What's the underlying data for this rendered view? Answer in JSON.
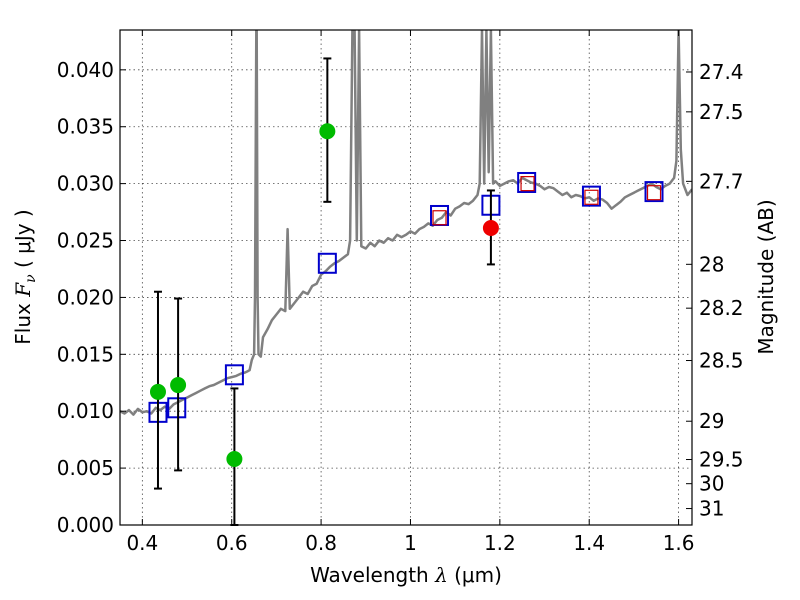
{
  "chart_data": {
    "type": "line",
    "xlabel": "Wavelength  λ (μm)",
    "ylabel": "Flux  F_ν  ( μJy )",
    "ylabel_parts": {
      "pre": "Flux ",
      "sym": "F",
      "sub": "ν",
      "post": "  ( μJy )"
    },
    "xlabel_parts": {
      "pre": "Wavelength  ",
      "sym": "λ",
      "post": " (μm)"
    },
    "y2label": "Magnitude (AB)",
    "xlim": [
      0.35,
      1.63
    ],
    "ylim": [
      0.0,
      0.0435
    ],
    "grid": true,
    "x_ticks": [
      {
        "value": 0.4,
        "label": "0.4"
      },
      {
        "value": 0.6,
        "label": "0.6"
      },
      {
        "value": 0.8,
        "label": "0.8"
      },
      {
        "value": 1.0,
        "label": "1"
      },
      {
        "value": 1.2,
        "label": "1.2"
      },
      {
        "value": 1.4,
        "label": "1.4"
      },
      {
        "value": 1.6,
        "label": "1.6"
      }
    ],
    "y_ticks": [
      {
        "value": 0.0,
        "label": "0.000"
      },
      {
        "value": 0.005,
        "label": "0.005"
      },
      {
        "value": 0.01,
        "label": "0.010"
      },
      {
        "value": 0.015,
        "label": "0.015"
      },
      {
        "value": 0.02,
        "label": "0.020"
      },
      {
        "value": 0.025,
        "label": "0.025"
      },
      {
        "value": 0.03,
        "label": "0.030"
      },
      {
        "value": 0.035,
        "label": "0.035"
      },
      {
        "value": 0.04,
        "label": "0.040"
      }
    ],
    "mag_ticks": [
      {
        "mag": 27.4,
        "label": "27.4"
      },
      {
        "mag": 27.5,
        "label": "27.5"
      },
      {
        "mag": 27.7,
        "label": "27.7"
      },
      {
        "mag": 28.0,
        "label": "28"
      },
      {
        "mag": 28.2,
        "label": "28.2"
      },
      {
        "mag": 28.5,
        "label": "28.5"
      },
      {
        "mag": 29.0,
        "label": "29"
      },
      {
        "mag": 29.5,
        "label": "29.5"
      },
      {
        "mag": 30.0,
        "label": "30"
      },
      {
        "mag": 31.0,
        "label": "31"
      }
    ],
    "series": [
      {
        "name": "model_sed",
        "kind": "line",
        "color": "#808080",
        "x": [
          0.35,
          0.36,
          0.37,
          0.38,
          0.39,
          0.4,
          0.41,
          0.42,
          0.43,
          0.44,
          0.45,
          0.46,
          0.47,
          0.48,
          0.49,
          0.5,
          0.51,
          0.52,
          0.53,
          0.54,
          0.55,
          0.56,
          0.57,
          0.58,
          0.59,
          0.6,
          0.61,
          0.62,
          0.63,
          0.635,
          0.64,
          0.645,
          0.65,
          0.652,
          0.655,
          0.656,
          0.658,
          0.66,
          0.665,
          0.67,
          0.68,
          0.69,
          0.7,
          0.71,
          0.72,
          0.725,
          0.73,
          0.74,
          0.75,
          0.76,
          0.77,
          0.78,
          0.79,
          0.8,
          0.81,
          0.82,
          0.83,
          0.84,
          0.85,
          0.86,
          0.865,
          0.87,
          0.875,
          0.88,
          0.885,
          0.89,
          0.9,
          0.91,
          0.92,
          0.93,
          0.94,
          0.95,
          0.96,
          0.97,
          0.98,
          0.99,
          1.0,
          1.01,
          1.02,
          1.03,
          1.04,
          1.05,
          1.06,
          1.07,
          1.08,
          1.09,
          1.1,
          1.11,
          1.12,
          1.13,
          1.14,
          1.15,
          1.155,
          1.16,
          1.165,
          1.17,
          1.175,
          1.18,
          1.185,
          1.19,
          1.2,
          1.21,
          1.22,
          1.23,
          1.24,
          1.25,
          1.26,
          1.27,
          1.28,
          1.29,
          1.3,
          1.31,
          1.32,
          1.33,
          1.34,
          1.35,
          1.36,
          1.37,
          1.38,
          1.39,
          1.4,
          1.41,
          1.42,
          1.43,
          1.44,
          1.45,
          1.46,
          1.47,
          1.48,
          1.49,
          1.5,
          1.51,
          1.52,
          1.53,
          1.54,
          1.55,
          1.56,
          1.57,
          1.58,
          1.59,
          1.595,
          1.6,
          1.605,
          1.61,
          1.62,
          1.63
        ],
        "y": [
          0.01,
          0.0098,
          0.0101,
          0.0097,
          0.0102,
          0.0099,
          0.01,
          0.0098,
          0.0103,
          0.0101,
          0.0104,
          0.0102,
          0.0106,
          0.0108,
          0.011,
          0.0112,
          0.0114,
          0.0116,
          0.0118,
          0.012,
          0.0122,
          0.0123,
          0.0125,
          0.0127,
          0.0129,
          0.013,
          0.0131,
          0.0133,
          0.0134,
          0.0135,
          0.0136,
          0.0145,
          0.015,
          0.02,
          0.0435,
          0.0435,
          0.02,
          0.015,
          0.0148,
          0.0165,
          0.0172,
          0.018,
          0.0185,
          0.019,
          0.0188,
          0.026,
          0.019,
          0.0195,
          0.02,
          0.0205,
          0.0203,
          0.021,
          0.0212,
          0.022,
          0.0223,
          0.0227,
          0.023,
          0.0232,
          0.0235,
          0.0238,
          0.025,
          0.0435,
          0.0435,
          0.025,
          0.0435,
          0.0245,
          0.0243,
          0.0248,
          0.0245,
          0.025,
          0.0248,
          0.0252,
          0.025,
          0.0255,
          0.0253,
          0.0255,
          0.0258,
          0.0256,
          0.026,
          0.0262,
          0.0265,
          0.0263,
          0.0268,
          0.027,
          0.0275,
          0.0272,
          0.0278,
          0.028,
          0.0283,
          0.0282,
          0.0285,
          0.029,
          0.03,
          0.0435,
          0.03,
          0.0435,
          0.031,
          0.0435,
          0.03,
          0.0302,
          0.0298,
          0.03,
          0.0302,
          0.0303,
          0.03,
          0.0305,
          0.0303,
          0.0301,
          0.03,
          0.0298,
          0.0295,
          0.0297,
          0.0296,
          0.0293,
          0.029,
          0.0292,
          0.0288,
          0.029,
          0.0289,
          0.0287,
          0.0288,
          0.0285,
          0.0287,
          0.0286,
          0.0283,
          0.0278,
          0.0281,
          0.0284,
          0.0288,
          0.029,
          0.0292,
          0.0294,
          0.0296,
          0.0298,
          0.03,
          0.0297,
          0.0295,
          0.0298,
          0.03,
          0.0305,
          0.032,
          0.0435,
          0.033,
          0.03,
          0.029,
          0.0295
        ]
      },
      {
        "name": "model_photometry",
        "kind": "open_square",
        "color": "#0000cc",
        "points": [
          {
            "x": 0.435,
            "y": 0.0099
          },
          {
            "x": 0.477,
            "y": 0.0103
          },
          {
            "x": 0.606,
            "y": 0.0132
          },
          {
            "x": 0.814,
            "y": 0.023
          },
          {
            "x": 1.065,
            "y": 0.0272
          },
          {
            "x": 1.18,
            "y": 0.0281
          },
          {
            "x": 1.26,
            "y": 0.0301
          },
          {
            "x": 1.405,
            "y": 0.0289
          },
          {
            "x": 1.545,
            "y": 0.0293
          }
        ]
      },
      {
        "name": "observed_red_boxes",
        "kind": "thin_square",
        "color": "#cc0000",
        "points": [
          {
            "x": 1.065,
            "y": 0.027
          },
          {
            "x": 1.262,
            "y": 0.03
          },
          {
            "x": 1.405,
            "y": 0.0288
          },
          {
            "x": 1.545,
            "y": 0.0292
          }
        ]
      },
      {
        "name": "observed_detections",
        "kind": "filled_circle",
        "color": "#00bb00",
        "points": [
          {
            "x": 0.435,
            "y": 0.0117,
            "yerr_low": 0.0032,
            "yerr_high": 0.0205
          },
          {
            "x": 0.48,
            "y": 0.0123,
            "yerr_low": 0.0048,
            "yerr_high": 0.0199
          },
          {
            "x": 0.606,
            "y": 0.0058,
            "yerr_low": 0.0,
            "yerr_high": 0.012
          },
          {
            "x": 0.814,
            "y": 0.0346,
            "yerr_low": 0.0284,
            "yerr_high": 0.041
          }
        ]
      },
      {
        "name": "observed_red_point",
        "kind": "filled_circle",
        "color": "#ee0000",
        "points": [
          {
            "x": 1.18,
            "y": 0.0261,
            "yerr_low": 0.0229,
            "yerr_high": 0.0294
          }
        ]
      }
    ]
  }
}
